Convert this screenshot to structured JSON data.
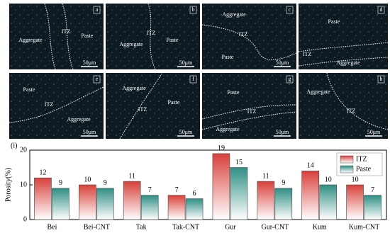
{
  "panels": [
    {
      "letter": "a",
      "labels": [
        "Aggregate",
        "ITZ",
        "Paste"
      ],
      "scale": "50μm"
    },
    {
      "letter": "b",
      "labels": [
        "Aggregate",
        "ITZ",
        "Paste"
      ],
      "scale": "50μm"
    },
    {
      "letter": "c",
      "labels": [
        "Aggregate",
        "ITZ",
        "Paste"
      ],
      "scale": "50μm"
    },
    {
      "letter": "d",
      "labels": [
        "Paste",
        "ITZ",
        "Aggregate"
      ]
    },
    {
      "letter": "e",
      "labels": [
        "Paste",
        "ITZ",
        "Aggregate"
      ],
      "scale": "50μm"
    },
    {
      "letter": "f",
      "labels": [
        "Aggregate",
        "ITZ",
        "Paste"
      ],
      "scale": "50μm"
    },
    {
      "letter": "g",
      "labels": [
        "Paste",
        "ITZ",
        "Aggregate"
      ],
      "scale": "50μm"
    },
    {
      "letter": "h",
      "labels": [
        "Aggregate",
        "ITZ"
      ],
      "scale": "50μm"
    }
  ],
  "chart_data": {
    "type": "bar",
    "panel_label": "(i)",
    "y_label": "Porosity(%)",
    "categories": [
      "Bei",
      "Bei-CNT",
      "Tak",
      "Tak-CNT",
      "Gur",
      "Gur-CNT",
      "Kum",
      "Kum-CNT"
    ],
    "series": [
      {
        "name": "ITZ",
        "color": "#d8403a",
        "values": [
          12,
          10,
          11,
          7,
          19,
          11,
          14,
          10
        ]
      },
      {
        "name": "Paste",
        "color": "#2f8f84",
        "values": [
          9,
          9,
          7,
          6,
          15,
          9,
          10,
          7
        ]
      }
    ],
    "ylim": [
      0,
      20
    ],
    "yticks": [
      0,
      10,
      20
    ],
    "legend": "upper-right"
  }
}
